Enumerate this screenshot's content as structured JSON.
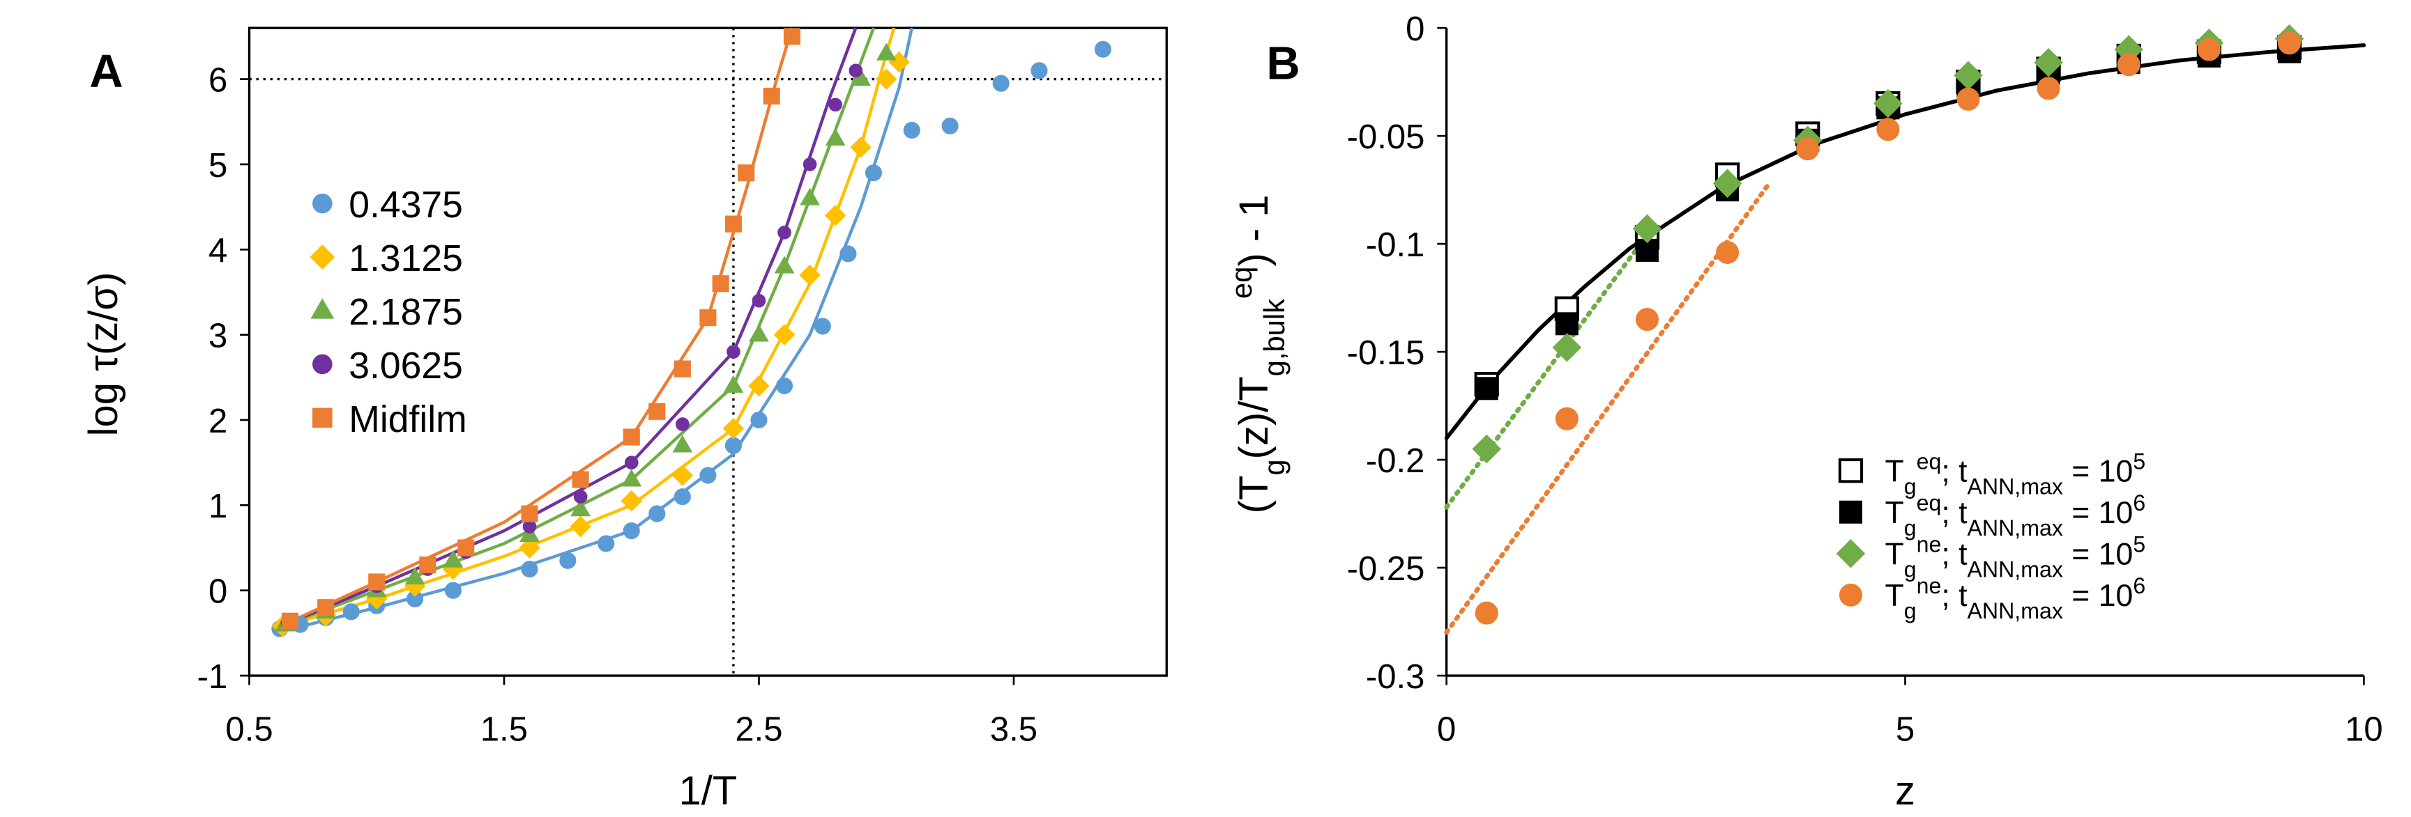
{
  "chart_data": [
    {
      "type": "scatter",
      "panel": "A",
      "x_label": "1/T",
      "y_label": "log τ(z/σ)",
      "xlim": [
        0.5,
        4.1
      ],
      "xticks": [
        0.5,
        1.5,
        2.5,
        3.5
      ],
      "ylim": [
        -1,
        6.6
      ],
      "yticks": [
        -1,
        0,
        1,
        2,
        3,
        4,
        5,
        6
      ],
      "reference_lines": {
        "x": 2.4,
        "y": 6
      },
      "series": [
        {
          "name": "0.4375",
          "color": "#5b9bd5",
          "marker": "circle",
          "x": [
            0.62,
            0.7,
            0.8,
            0.9,
            1.0,
            1.15,
            1.3,
            1.6,
            1.75,
            1.9,
            2.0,
            2.1,
            2.2,
            2.3,
            2.4,
            2.5,
            2.6,
            2.75,
            2.85,
            2.95,
            3.1,
            3.25,
            3.45,
            3.6,
            3.85
          ],
          "values": [
            -0.45,
            -0.4,
            -0.32,
            -0.25,
            -0.18,
            -0.1,
            0.0,
            0.25,
            0.35,
            0.55,
            0.7,
            0.9,
            1.1,
            1.35,
            1.7,
            2.0,
            2.4,
            3.1,
            3.95,
            4.9,
            5.4,
            5.45,
            5.95,
            6.1,
            6.35
          ],
          "fit_x": [
            0.6,
            1.0,
            1.5,
            2.0,
            2.4,
            2.7,
            2.9,
            3.05,
            3.1
          ],
          "fit_values": [
            -0.5,
            -0.2,
            0.2,
            0.7,
            1.6,
            3.0,
            4.5,
            5.9,
            6.6
          ]
        },
        {
          "name": "1.3125",
          "color": "#ffc000",
          "marker": "diamond",
          "x": [
            0.63,
            0.8,
            1.0,
            1.15,
            1.3,
            1.6,
            1.8,
            2.0,
            2.2,
            2.4,
            2.5,
            2.6,
            2.7,
            2.8,
            2.9,
            3.0,
            3.05
          ],
          "values": [
            -0.42,
            -0.3,
            -0.1,
            0.05,
            0.25,
            0.5,
            0.75,
            1.05,
            1.35,
            1.9,
            2.4,
            3.0,
            3.7,
            4.4,
            5.2,
            6.0,
            6.2
          ],
          "fit_x": [
            0.6,
            1.0,
            1.5,
            2.0,
            2.4,
            2.7,
            2.9,
            3.0,
            3.03
          ],
          "fit_values": [
            -0.45,
            -0.1,
            0.4,
            1.0,
            1.9,
            3.6,
            5.2,
            6.3,
            6.6
          ]
        },
        {
          "name": "2.1875",
          "color": "#70ad47",
          "marker": "triangle",
          "x": [
            0.64,
            0.8,
            1.0,
            1.15,
            1.3,
            1.6,
            1.8,
            2.0,
            2.2,
            2.4,
            2.5,
            2.6,
            2.7,
            2.8,
            2.9,
            3.0
          ],
          "values": [
            -0.4,
            -0.25,
            0.0,
            0.15,
            0.35,
            0.65,
            0.95,
            1.3,
            1.7,
            2.4,
            3.0,
            3.8,
            4.6,
            5.3,
            6.0,
            6.3
          ],
          "fit_x": [
            0.6,
            1.0,
            1.5,
            2.0,
            2.4,
            2.6,
            2.8,
            2.95
          ],
          "fit_values": [
            -0.45,
            0.0,
            0.55,
            1.3,
            2.4,
            3.8,
            5.4,
            6.6
          ]
        },
        {
          "name": "3.0625",
          "color": "#7030a0",
          "marker": "circle",
          "x": [
            0.65,
            0.8,
            1.0,
            1.2,
            1.35,
            1.6,
            1.8,
            2.0,
            2.2,
            2.4,
            2.5,
            2.6,
            2.7,
            2.8,
            2.88
          ],
          "values": [
            -0.38,
            -0.22,
            0.05,
            0.25,
            0.45,
            0.75,
            1.1,
            1.5,
            1.95,
            2.8,
            3.4,
            4.2,
            5.0,
            5.7,
            6.1
          ],
          "fit_x": [
            0.6,
            1.0,
            1.5,
            2.0,
            2.4,
            2.6,
            2.78,
            2.88
          ],
          "fit_values": [
            -0.45,
            0.05,
            0.7,
            1.5,
            2.8,
            4.2,
            5.8,
            6.6
          ]
        },
        {
          "name": "Midfilm",
          "color": "#ed7d31",
          "marker": "square",
          "x": [
            0.66,
            0.8,
            1.0,
            1.2,
            1.35,
            1.6,
            1.8,
            2.0,
            2.1,
            2.2,
            2.3,
            2.35,
            2.4,
            2.45,
            2.55,
            2.63
          ],
          "values": [
            -0.36,
            -0.2,
            0.1,
            0.3,
            0.5,
            0.9,
            1.3,
            1.8,
            2.1,
            2.6,
            3.2,
            3.6,
            4.3,
            4.9,
            5.8,
            6.5
          ],
          "fit_x": [
            0.6,
            1.0,
            1.5,
            2.0,
            2.3,
            2.45,
            2.57,
            2.63
          ],
          "fit_values": [
            -0.45,
            0.1,
            0.8,
            1.8,
            3.2,
            4.7,
            6.0,
            6.6
          ]
        }
      ]
    },
    {
      "type": "scatter",
      "panel": "B",
      "x_label": "z",
      "y_label_parts": [
        "(T",
        "g",
        "(z)/T",
        "g,bulk",
        "eq",
        ") - 1"
      ],
      "y_label_format": [
        "",
        "sub",
        "",
        "sub",
        "sup",
        ""
      ],
      "xlim": [
        0,
        10
      ],
      "xticks": [
        0,
        5,
        10
      ],
      "ylim": [
        -0.3,
        0
      ],
      "yticks": [
        0,
        -0.05,
        -0.1,
        -0.15,
        -0.2,
        -0.25,
        -0.3
      ],
      "series": [
        {
          "name_parts": [
            "T",
            "g",
            "eq",
            "; t",
            "ANN,max",
            " = 10",
            "5"
          ],
          "name_format": [
            "",
            "sub",
            "sup",
            "",
            "sub",
            "",
            "sup"
          ],
          "color": "#000000",
          "marker": "square",
          "filled": false,
          "x": [
            0.4375,
            1.3125,
            2.1875,
            3.0625,
            3.9375,
            4.8125,
            5.6875,
            6.5625,
            7.4375,
            8.3125,
            9.1875
          ],
          "values": [
            -0.165,
            -0.13,
            -0.097,
            -0.068,
            -0.049,
            -0.035,
            -0.025,
            -0.019,
            -0.013,
            -0.011,
            -0.009
          ]
        },
        {
          "name_parts": [
            "T",
            "g",
            "eq",
            "; t",
            "ANN,max",
            " = 10",
            "6"
          ],
          "name_format": [
            "",
            "sub",
            "sup",
            "",
            "sub",
            "",
            "sup"
          ],
          "color": "#000000",
          "marker": "square",
          "filled": true,
          "x": [
            0.4375,
            1.3125,
            2.1875,
            3.0625,
            3.9375,
            4.8125,
            5.6875,
            6.5625,
            7.4375,
            8.3125,
            9.1875
          ],
          "values": [
            -0.167,
            -0.137,
            -0.103,
            -0.075,
            -0.052,
            -0.037,
            -0.027,
            -0.021,
            -0.016,
            -0.013,
            -0.011
          ]
        },
        {
          "name_parts": [
            "T",
            "g",
            "ne",
            "; t",
            "ANN,max",
            " = 10",
            "5"
          ],
          "name_format": [
            "",
            "sub",
            "sup",
            "",
            "sub",
            "",
            "sup"
          ],
          "color": "#70ad47",
          "marker": "diamond",
          "filled": true,
          "x": [
            0.4375,
            1.3125,
            2.1875,
            3.0625,
            3.9375,
            4.8125,
            5.6875,
            6.5625,
            7.4375,
            8.3125,
            9.1875
          ],
          "values": [
            -0.195,
            -0.148,
            -0.093,
            -0.072,
            -0.052,
            -0.035,
            -0.022,
            -0.016,
            -0.01,
            -0.007,
            -0.005
          ]
        },
        {
          "name_parts": [
            "T",
            "g",
            "ne",
            "; t",
            "ANN,max",
            " = 10",
            "6"
          ],
          "name_format": [
            "",
            "sub",
            "sup",
            "",
            "sub",
            "",
            "sup"
          ],
          "color": "#ed7d31",
          "marker": "circle",
          "filled": true,
          "x": [
            0.4375,
            1.3125,
            2.1875,
            3.0625,
            3.9375,
            4.8125,
            5.6875,
            6.5625,
            7.4375,
            8.3125,
            9.1875
          ],
          "values": [
            -0.271,
            -0.181,
            -0.135,
            -0.104,
            -0.056,
            -0.047,
            -0.033,
            -0.028,
            -0.017,
            -0.01,
            -0.007
          ]
        }
      ],
      "fits": [
        {
          "color": "#000000",
          "dash": "solid",
          "x": [
            0,
            0.5,
            1,
            1.5,
            2,
            3,
            4,
            5,
            6,
            7,
            8,
            9,
            10
          ],
          "values": [
            -0.19,
            -0.163,
            -0.14,
            -0.12,
            -0.102,
            -0.074,
            -0.054,
            -0.04,
            -0.029,
            -0.021,
            -0.015,
            -0.011,
            -0.008
          ]
        },
        {
          "color": "#70ad47",
          "dash": "dotted",
          "x": [
            0,
            2.2
          ],
          "values": [
            -0.222,
            -0.095
          ]
        },
        {
          "color": "#ed7d31",
          "dash": "dotted",
          "x": [
            0,
            3.5
          ],
          "values": [
            -0.28,
            -0.073
          ]
        }
      ]
    }
  ]
}
